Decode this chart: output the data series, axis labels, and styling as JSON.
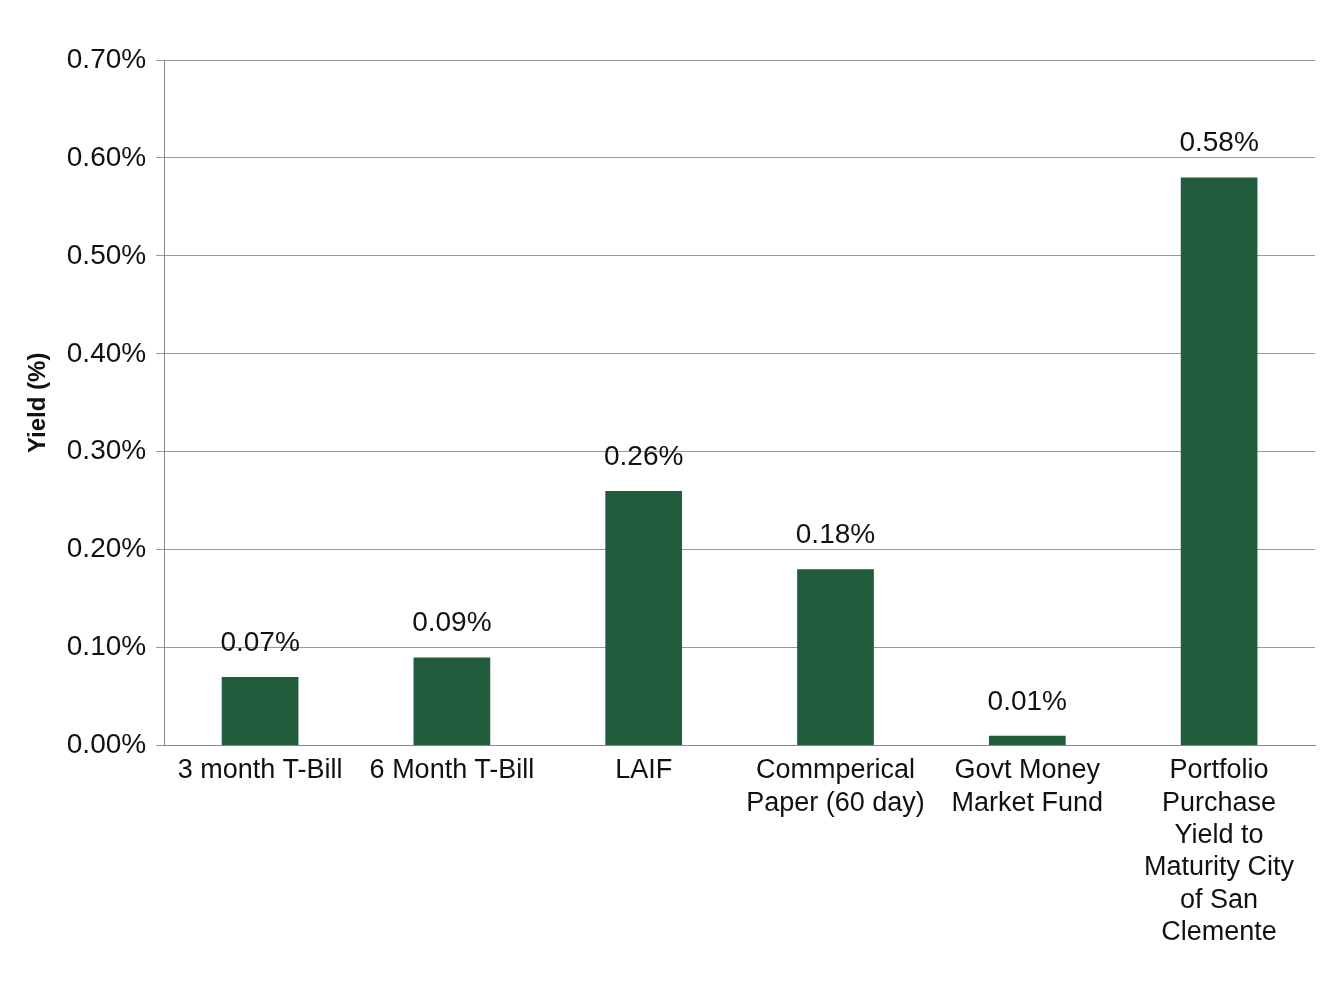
{
  "chart_data": {
    "type": "bar",
    "ylabel": "Yield (%)",
    "categories": [
      "3 month T-Bill",
      "6 Month T-Bill",
      "LAIF",
      "Commperical Paper (60 day)",
      "Govt Money Market Fund",
      "Portfolio Purchase Yield to Maturity City of San Clemente"
    ],
    "values": [
      0.07,
      0.09,
      0.26,
      0.18,
      0.01,
      0.58
    ],
    "value_labels": [
      "0.07%",
      "0.09%",
      "0.26%",
      "0.18%",
      "0.01%",
      "0.58%"
    ],
    "color": "#215c3c",
    "ylim": [
      0,
      0.7
    ],
    "yticks": [
      {
        "value": 0,
        "label": "0.00%"
      },
      {
        "value": 0.1,
        "label": "0.10%"
      },
      {
        "value": 0.2,
        "label": "0.20%"
      },
      {
        "value": 0.3,
        "label": "0.30%"
      },
      {
        "value": 0.4,
        "label": "0.40%"
      },
      {
        "value": 0.5,
        "label": "0.50%"
      },
      {
        "value": 0.6,
        "label": "0.60%"
      },
      {
        "value": 0.7,
        "label": "0.70%"
      }
    ],
    "grid": "y",
    "legend": false
  }
}
